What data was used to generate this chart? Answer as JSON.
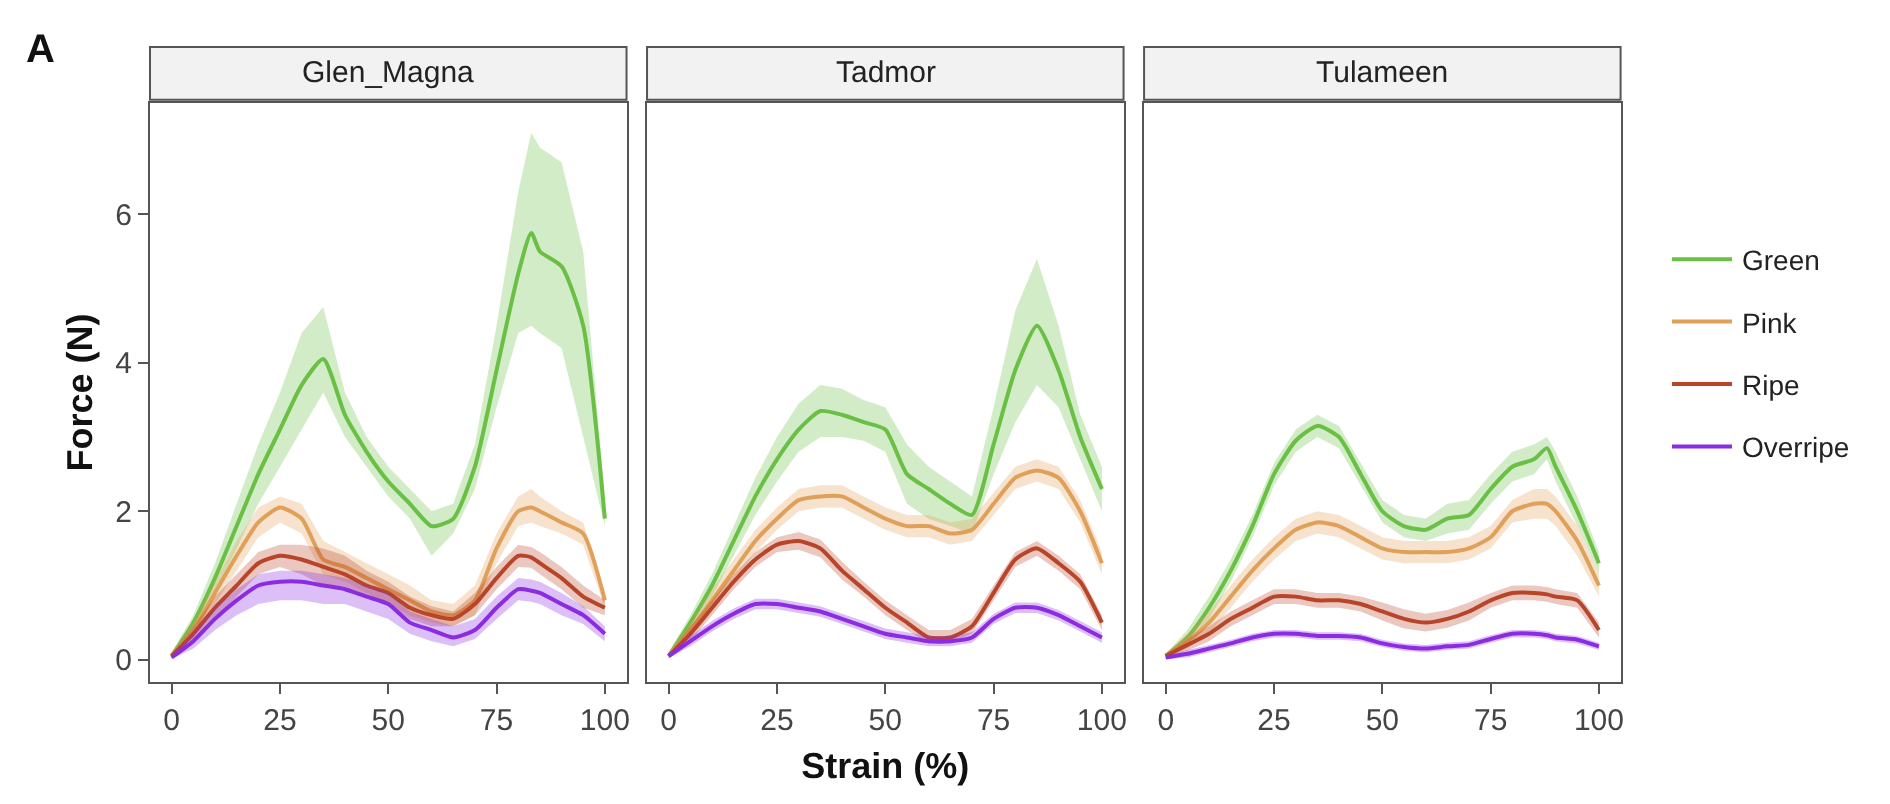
{
  "chart_data": [
    {
      "type": "line",
      "title": "Glen_Magna",
      "ylabel": "Force (N)",
      "annotations": [
        "A"
      ],
      "xlim": [
        -5,
        105
      ],
      "xticks": [
        0,
        25,
        50,
        75,
        100
      ],
      "ylim": [
        -0.3,
        7.5
      ],
      "yticks": [
        0,
        2,
        4,
        6
      ],
      "grid": false,
      "legend": "right",
      "marker": "none",
      "line_style": "solid",
      "x": [
        0,
        5,
        10,
        15,
        20,
        25,
        30,
        35,
        40,
        45,
        50,
        55,
        60,
        65,
        70,
        75,
        80,
        83,
        85,
        90,
        95,
        100
      ],
      "series": [
        {
          "name": "Green",
          "color": "#6abf45",
          "values": [
            0.05,
            0.5,
            1.1,
            1.8,
            2.5,
            3.1,
            3.7,
            4.05,
            3.3,
            2.8,
            2.4,
            2.1,
            1.8,
            1.9,
            2.6,
            3.9,
            5.2,
            5.75,
            5.5,
            5.3,
            4.5,
            1.9
          ],
          "upper": [
            0.1,
            0.6,
            1.3,
            2.1,
            2.9,
            3.6,
            4.4,
            4.75,
            3.6,
            3.0,
            2.6,
            2.3,
            2.0,
            2.1,
            2.9,
            4.5,
            6.3,
            7.1,
            6.9,
            6.7,
            5.5,
            2.2
          ],
          "lower": [
            0.02,
            0.4,
            0.9,
            1.5,
            2.1,
            2.6,
            3.1,
            3.6,
            3.0,
            2.6,
            2.2,
            1.9,
            1.4,
            1.7,
            2.3,
            3.4,
            4.4,
            4.5,
            4.4,
            4.2,
            3.0,
            1.8
          ]
        },
        {
          "name": "Pink",
          "color": "#e0a05a",
          "values": [
            0.05,
            0.4,
            0.9,
            1.4,
            1.85,
            2.05,
            1.9,
            1.35,
            1.25,
            1.1,
            0.95,
            0.8,
            0.65,
            0.6,
            0.8,
            1.5,
            2.0,
            2.05,
            2.0,
            1.85,
            1.7,
            0.8
          ],
          "upper": [
            0.1,
            0.5,
            1.05,
            1.6,
            2.05,
            2.2,
            2.1,
            1.6,
            1.45,
            1.3,
            1.15,
            1.0,
            0.8,
            0.75,
            1.0,
            1.7,
            2.2,
            2.3,
            2.2,
            2.0,
            1.85,
            0.9
          ],
          "lower": [
            0.02,
            0.3,
            0.75,
            1.2,
            1.65,
            1.85,
            1.7,
            1.15,
            1.05,
            0.9,
            0.75,
            0.6,
            0.5,
            0.45,
            0.6,
            1.3,
            1.8,
            1.85,
            1.8,
            1.7,
            1.55,
            0.7
          ]
        },
        {
          "name": "Ripe",
          "color": "#b8452a",
          "values": [
            0.05,
            0.35,
            0.7,
            1.0,
            1.3,
            1.4,
            1.35,
            1.25,
            1.15,
            1.0,
            0.9,
            0.7,
            0.6,
            0.55,
            0.75,
            1.1,
            1.4,
            1.38,
            1.3,
            1.1,
            0.85,
            0.7
          ],
          "upper": [
            0.08,
            0.45,
            0.85,
            1.15,
            1.45,
            1.55,
            1.55,
            1.5,
            1.4,
            1.2,
            1.05,
            0.85,
            0.72,
            0.65,
            0.9,
            1.25,
            1.55,
            1.52,
            1.45,
            1.25,
            1.0,
            0.8
          ],
          "lower": [
            0.02,
            0.25,
            0.55,
            0.85,
            1.15,
            1.25,
            1.15,
            1.0,
            0.95,
            0.85,
            0.75,
            0.55,
            0.45,
            0.45,
            0.6,
            0.95,
            1.25,
            1.24,
            1.15,
            0.95,
            0.7,
            0.6
          ]
        },
        {
          "name": "Overripe",
          "color": "#8b2be2",
          "values": [
            0.03,
            0.25,
            0.55,
            0.8,
            1.0,
            1.05,
            1.05,
            1.0,
            0.95,
            0.85,
            0.75,
            0.5,
            0.4,
            0.3,
            0.4,
            0.7,
            0.95,
            0.93,
            0.9,
            0.75,
            0.6,
            0.35
          ],
          "upper": [
            0.06,
            0.35,
            0.7,
            0.95,
            1.15,
            1.2,
            1.2,
            1.15,
            1.1,
            1.0,
            0.9,
            0.65,
            0.55,
            0.45,
            0.55,
            0.85,
            1.1,
            1.08,
            1.05,
            0.9,
            0.72,
            0.45
          ],
          "lower": [
            0.01,
            0.15,
            0.4,
            0.6,
            0.75,
            0.8,
            0.8,
            0.75,
            0.75,
            0.65,
            0.55,
            0.35,
            0.25,
            0.18,
            0.28,
            0.55,
            0.8,
            0.78,
            0.75,
            0.6,
            0.48,
            0.25
          ]
        }
      ]
    },
    {
      "type": "line",
      "title": "Tadmor",
      "xlabel": "Strain (%)",
      "xlim": [
        -5,
        105
      ],
      "xticks": [
        0,
        25,
        50,
        75,
        100
      ],
      "ylim": [
        -0.3,
        7.5
      ],
      "yticks": [
        0,
        2,
        4,
        6
      ],
      "tick_labels": "x",
      "grid": false,
      "legend": "right",
      "marker": "none",
      "line_style": "solid",
      "x": [
        0,
        5,
        10,
        15,
        20,
        25,
        30,
        35,
        40,
        45,
        50,
        55,
        60,
        65,
        70,
        75,
        80,
        85,
        90,
        95,
        100
      ],
      "series": [
        {
          "name": "Green",
          "color": "#6abf45",
          "values": [
            0.05,
            0.5,
            1.0,
            1.6,
            2.2,
            2.7,
            3.1,
            3.35,
            3.3,
            3.2,
            3.1,
            2.5,
            2.3,
            2.1,
            1.95,
            2.9,
            3.9,
            4.5,
            3.9,
            3.0,
            2.3
          ],
          "upper": [
            0.1,
            0.6,
            1.15,
            1.8,
            2.45,
            3.0,
            3.45,
            3.7,
            3.65,
            3.5,
            3.4,
            2.9,
            2.6,
            2.4,
            2.2,
            3.4,
            4.7,
            5.4,
            4.5,
            3.3,
            2.6
          ],
          "lower": [
            0.02,
            0.4,
            0.85,
            1.4,
            1.95,
            2.4,
            2.8,
            3.0,
            3.0,
            2.95,
            2.8,
            2.1,
            1.9,
            1.8,
            1.7,
            2.5,
            3.2,
            3.7,
            3.4,
            2.7,
            2.0
          ]
        },
        {
          "name": "Pink",
          "color": "#e0a05a",
          "values": [
            0.05,
            0.4,
            0.8,
            1.2,
            1.6,
            1.9,
            2.15,
            2.2,
            2.2,
            2.05,
            1.9,
            1.8,
            1.8,
            1.7,
            1.75,
            2.1,
            2.45,
            2.55,
            2.45,
            2.0,
            1.3
          ],
          "upper": [
            0.1,
            0.5,
            0.95,
            1.35,
            1.75,
            2.05,
            2.3,
            2.35,
            2.35,
            2.2,
            2.05,
            1.95,
            1.95,
            1.85,
            1.9,
            2.25,
            2.6,
            2.7,
            2.6,
            2.15,
            1.45
          ],
          "lower": [
            0.02,
            0.3,
            0.65,
            1.05,
            1.45,
            1.75,
            2.0,
            2.05,
            2.05,
            1.9,
            1.75,
            1.65,
            1.65,
            1.55,
            1.6,
            1.95,
            2.3,
            2.4,
            2.3,
            1.85,
            1.15
          ]
        },
        {
          "name": "Ripe",
          "color": "#b8452a",
          "values": [
            0.05,
            0.35,
            0.7,
            1.05,
            1.35,
            1.55,
            1.6,
            1.5,
            1.2,
            0.95,
            0.7,
            0.5,
            0.3,
            0.3,
            0.45,
            0.9,
            1.35,
            1.5,
            1.3,
            1.05,
            0.5
          ],
          "upper": [
            0.08,
            0.45,
            0.8,
            1.15,
            1.45,
            1.65,
            1.72,
            1.62,
            1.32,
            1.05,
            0.8,
            0.6,
            0.4,
            0.4,
            0.55,
            1.0,
            1.45,
            1.6,
            1.4,
            1.15,
            0.6
          ],
          "lower": [
            0.02,
            0.25,
            0.6,
            0.95,
            1.25,
            1.45,
            1.48,
            1.38,
            1.08,
            0.85,
            0.6,
            0.4,
            0.22,
            0.22,
            0.35,
            0.8,
            1.25,
            1.4,
            1.2,
            0.95,
            0.4
          ]
        },
        {
          "name": "Overripe",
          "color": "#8b2be2",
          "values": [
            0.05,
            0.25,
            0.45,
            0.62,
            0.75,
            0.75,
            0.7,
            0.65,
            0.55,
            0.45,
            0.35,
            0.3,
            0.25,
            0.25,
            0.3,
            0.55,
            0.7,
            0.7,
            0.6,
            0.45,
            0.3
          ],
          "upper": [
            0.08,
            0.32,
            0.52,
            0.69,
            0.82,
            0.82,
            0.77,
            0.72,
            0.62,
            0.52,
            0.42,
            0.37,
            0.32,
            0.32,
            0.37,
            0.62,
            0.77,
            0.77,
            0.67,
            0.52,
            0.37
          ],
          "lower": [
            0.02,
            0.18,
            0.38,
            0.55,
            0.68,
            0.68,
            0.63,
            0.58,
            0.48,
            0.38,
            0.28,
            0.23,
            0.18,
            0.18,
            0.23,
            0.48,
            0.63,
            0.63,
            0.53,
            0.38,
            0.23
          ]
        }
      ]
    },
    {
      "type": "line",
      "title": "Tulameen",
      "xlim": [
        -5,
        105
      ],
      "xticks": [
        0,
        25,
        50,
        75,
        100
      ],
      "ylim": [
        -0.3,
        7.5
      ],
      "yticks": [
        0,
        2,
        4,
        6
      ],
      "tick_labels": "x",
      "grid": false,
      "legend": "right",
      "marker": "none",
      "line_style": "solid",
      "x": [
        0,
        5,
        10,
        15,
        20,
        25,
        30,
        35,
        40,
        45,
        50,
        55,
        60,
        65,
        70,
        75,
        80,
        85,
        88,
        90,
        95,
        100
      ],
      "series": [
        {
          "name": "Green",
          "color": "#6abf45",
          "values": [
            0.05,
            0.3,
            0.7,
            1.2,
            1.8,
            2.5,
            2.95,
            3.15,
            3.0,
            2.5,
            2.0,
            1.8,
            1.75,
            1.9,
            1.95,
            2.3,
            2.6,
            2.7,
            2.85,
            2.6,
            2.0,
            1.3
          ],
          "upper": [
            0.08,
            0.4,
            0.85,
            1.35,
            1.95,
            2.65,
            3.1,
            3.3,
            3.15,
            2.65,
            2.15,
            1.95,
            1.9,
            2.1,
            2.15,
            2.5,
            2.8,
            2.9,
            3.0,
            2.8,
            2.2,
            1.45
          ],
          "lower": [
            0.02,
            0.2,
            0.55,
            1.05,
            1.65,
            2.35,
            2.8,
            3.0,
            2.85,
            2.35,
            1.85,
            1.65,
            1.6,
            1.7,
            1.75,
            2.1,
            2.4,
            2.5,
            2.7,
            2.4,
            1.8,
            1.15
          ]
        },
        {
          "name": "Pink",
          "color": "#e0a05a",
          "values": [
            0.05,
            0.25,
            0.5,
            0.85,
            1.2,
            1.5,
            1.75,
            1.85,
            1.8,
            1.65,
            1.5,
            1.45,
            1.45,
            1.45,
            1.5,
            1.65,
            2.0,
            2.1,
            2.1,
            2.0,
            1.6,
            1.0
          ],
          "upper": [
            0.08,
            0.35,
            0.65,
            1.0,
            1.35,
            1.65,
            1.9,
            2.0,
            1.95,
            1.8,
            1.65,
            1.6,
            1.6,
            1.6,
            1.65,
            1.8,
            2.15,
            2.3,
            2.3,
            2.2,
            1.8,
            1.15
          ],
          "lower": [
            0.02,
            0.15,
            0.35,
            0.7,
            1.05,
            1.35,
            1.6,
            1.7,
            1.65,
            1.5,
            1.35,
            1.3,
            1.3,
            1.3,
            1.35,
            1.5,
            1.85,
            1.9,
            1.9,
            1.8,
            1.4,
            0.85
          ]
        },
        {
          "name": "Ripe",
          "color": "#b8452a",
          "values": [
            0.05,
            0.2,
            0.35,
            0.55,
            0.7,
            0.85,
            0.85,
            0.8,
            0.8,
            0.75,
            0.65,
            0.55,
            0.5,
            0.55,
            0.65,
            0.8,
            0.9,
            0.9,
            0.88,
            0.85,
            0.8,
            0.4
          ],
          "upper": [
            0.08,
            0.28,
            0.45,
            0.65,
            0.8,
            0.95,
            0.95,
            0.9,
            0.9,
            0.85,
            0.77,
            0.68,
            0.62,
            0.67,
            0.77,
            0.9,
            1.0,
            1.0,
            0.98,
            0.95,
            0.9,
            0.5
          ],
          "lower": [
            0.02,
            0.12,
            0.25,
            0.45,
            0.6,
            0.75,
            0.75,
            0.7,
            0.7,
            0.65,
            0.53,
            0.42,
            0.38,
            0.43,
            0.53,
            0.7,
            0.8,
            0.8,
            0.78,
            0.75,
            0.7,
            0.3
          ]
        },
        {
          "name": "Overripe",
          "color": "#8b2be2",
          "values": [
            0.03,
            0.08,
            0.15,
            0.22,
            0.3,
            0.35,
            0.35,
            0.32,
            0.32,
            0.3,
            0.22,
            0.17,
            0.15,
            0.18,
            0.2,
            0.28,
            0.35,
            0.35,
            0.33,
            0.3,
            0.27,
            0.18
          ],
          "upper": [
            0.05,
            0.13,
            0.2,
            0.27,
            0.35,
            0.4,
            0.4,
            0.37,
            0.37,
            0.35,
            0.27,
            0.22,
            0.2,
            0.23,
            0.25,
            0.33,
            0.4,
            0.4,
            0.38,
            0.35,
            0.32,
            0.23
          ],
          "lower": [
            0.01,
            0.03,
            0.1,
            0.17,
            0.25,
            0.3,
            0.3,
            0.27,
            0.27,
            0.25,
            0.17,
            0.12,
            0.1,
            0.13,
            0.15,
            0.23,
            0.3,
            0.3,
            0.28,
            0.25,
            0.22,
            0.13
          ]
        }
      ]
    }
  ]
}
